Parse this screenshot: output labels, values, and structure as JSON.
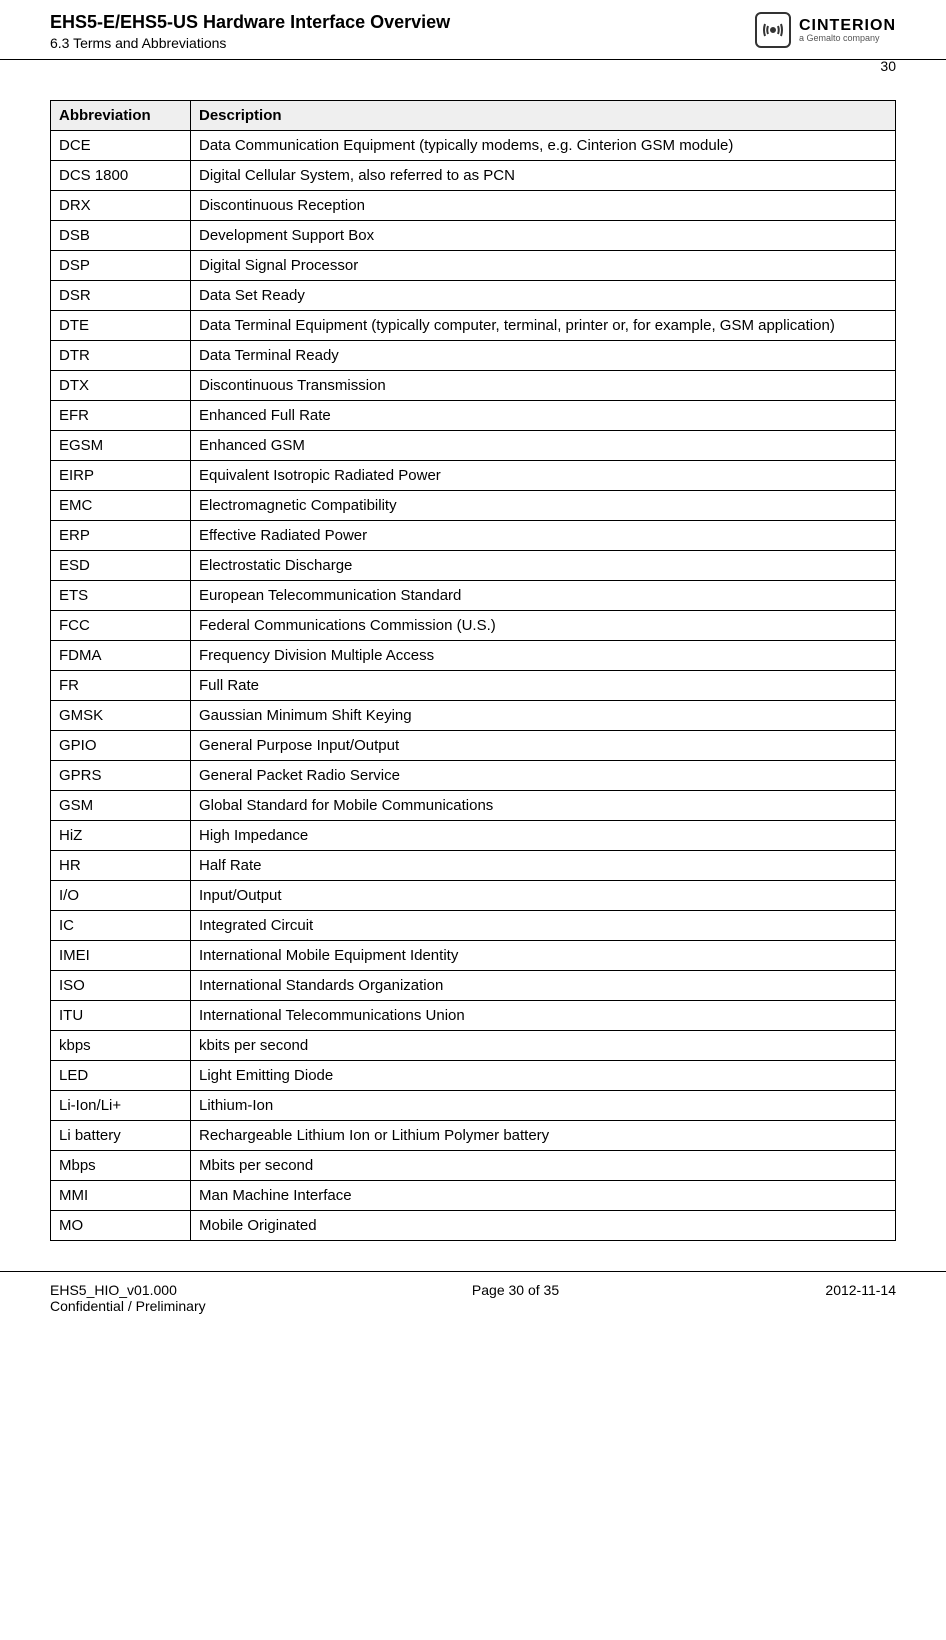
{
  "header": {
    "title": "EHS5-E/EHS5-US Hardware Interface Overview",
    "section": "6.3 Terms and Abbreviations",
    "logo_brand": "CINTERION",
    "logo_tagline": "a Gemalto company",
    "page_number_top": "30"
  },
  "table": {
    "columns": [
      "Abbreviation",
      "Description"
    ],
    "rows": [
      [
        "DCE",
        "Data Communication Equipment (typically modems, e.g. Cinterion GSM module)"
      ],
      [
        "DCS 1800",
        "Digital Cellular System, also referred to as PCN"
      ],
      [
        "DRX",
        "Discontinuous Reception"
      ],
      [
        "DSB",
        "Development Support Box"
      ],
      [
        "DSP",
        "Digital Signal Processor"
      ],
      [
        "DSR",
        "Data Set Ready"
      ],
      [
        "DTE",
        "Data Terminal Equipment (typically computer, terminal, printer or, for example, GSM application)"
      ],
      [
        "DTR",
        "Data Terminal Ready"
      ],
      [
        "DTX",
        "Discontinuous Transmission"
      ],
      [
        "EFR",
        "Enhanced Full Rate"
      ],
      [
        "EGSM",
        "Enhanced GSM"
      ],
      [
        "EIRP",
        "Equivalent Isotropic Radiated Power"
      ],
      [
        "EMC",
        "Electromagnetic Compatibility"
      ],
      [
        "ERP",
        "Effective Radiated Power"
      ],
      [
        "ESD",
        "Electrostatic Discharge"
      ],
      [
        "ETS",
        "European Telecommunication Standard"
      ],
      [
        "FCC",
        "Federal Communications Commission (U.S.)"
      ],
      [
        "FDMA",
        "Frequency Division Multiple Access"
      ],
      [
        "FR",
        "Full Rate"
      ],
      [
        "GMSK",
        "Gaussian Minimum Shift Keying"
      ],
      [
        "GPIO",
        "General Purpose Input/Output"
      ],
      [
        "GPRS",
        "General Packet Radio Service"
      ],
      [
        "GSM",
        "Global Standard for Mobile Communications"
      ],
      [
        "HiZ",
        "High Impedance"
      ],
      [
        "HR",
        "Half Rate"
      ],
      [
        "I/O",
        "Input/Output"
      ],
      [
        "IC",
        "Integrated Circuit"
      ],
      [
        "IMEI",
        "International Mobile Equipment Identity"
      ],
      [
        "ISO",
        "International Standards Organization"
      ],
      [
        "ITU",
        "International Telecommunications Union"
      ],
      [
        "kbps",
        "kbits per second"
      ],
      [
        "LED",
        "Light Emitting Diode"
      ],
      [
        "Li-Ion/Li+",
        "Lithium-Ion"
      ],
      [
        "Li battery",
        "Rechargeable Lithium Ion or Lithium Polymer battery"
      ],
      [
        "Mbps",
        "Mbits per second"
      ],
      [
        "MMI",
        "Man Machine Interface"
      ],
      [
        "MO",
        "Mobile Originated"
      ]
    ]
  },
  "footer": {
    "doc_id": "EHS5_HIO_v01.000",
    "confidentiality": "Confidential / Preliminary",
    "page_info": "Page 30 of 35",
    "date": "2012-11-14"
  },
  "styling": {
    "header_bg": "#efefef",
    "border_color": "#000000",
    "font_family": "Arial",
    "title_fontsize": 18,
    "body_fontsize": 15,
    "col1_width": 140
  }
}
